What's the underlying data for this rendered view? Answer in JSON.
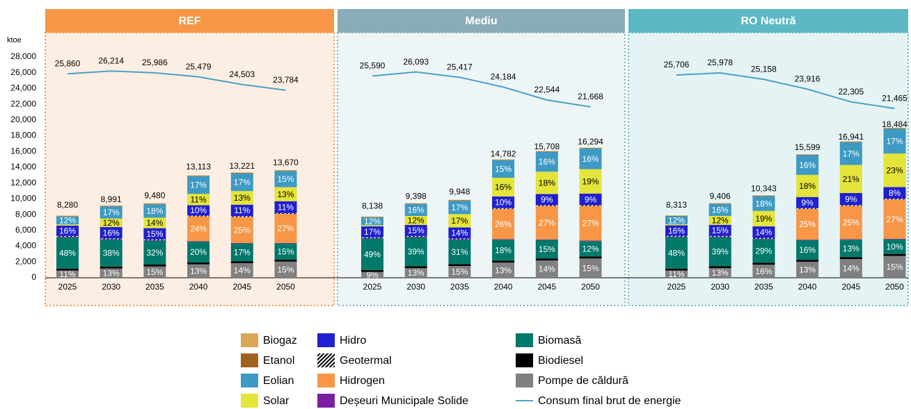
{
  "chart_data": {
    "type": "bar",
    "stacked": true,
    "ylabel": "ktoe",
    "ylim": [
      0,
      28000
    ],
    "yticks": [
      0,
      {
        "value": 2000,
        "label": "2,000"
      },
      {
        "value": 4000,
        "label": "4,000"
      },
      {
        "value": 6000,
        "label": "6,000"
      },
      {
        "value": 8000,
        "label": "8,000"
      },
      {
        "value": 10000,
        "label": "10,000"
      },
      {
        "value": 12000,
        "label": "12,000"
      },
      {
        "value": 14000,
        "label": "14,000"
      },
      {
        "value": 16000,
        "label": "16,000"
      },
      {
        "value": 18000,
        "label": "18,000"
      },
      {
        "value": 20000,
        "label": "20,000"
      },
      {
        "value": 22000,
        "label": "22,000"
      },
      {
        "value": 24000,
        "label": "24,000"
      },
      {
        "value": 26000,
        "label": "26,000"
      },
      {
        "value": 28000,
        "label": "28,000"
      }
    ],
    "series": [
      {
        "name": "Pompe de căldură",
        "color": "#808080"
      },
      {
        "name": "Biodiesel",
        "color": "#000000"
      },
      {
        "name": "Biomasă",
        "color": "#00786a"
      },
      {
        "name": "Deșeuri Municipale Solide",
        "color": "#7b1fa2"
      },
      {
        "name": "Hidrogen",
        "color": "#f79646"
      },
      {
        "name": "Geotermal",
        "color": "#000000",
        "pattern": "hatch"
      },
      {
        "name": "Hidro",
        "color": "#2020d0"
      },
      {
        "name": "Solar",
        "color": "#e4e43a"
      },
      {
        "name": "Eolian",
        "color": "#3d9ac4"
      },
      {
        "name": "Etanol",
        "color": "#a0631c"
      },
      {
        "name": "Biogaz",
        "color": "#d8a857"
      }
    ],
    "line": {
      "name": "Consum final brut de energie",
      "color": "#4aa0c8"
    },
    "panels": [
      {
        "title": "REF",
        "color": "#f79646",
        "background": "#fdeee3",
        "categories": [
          "2025",
          "2030",
          "2035",
          "2040",
          "2045",
          "2050"
        ],
        "values": [
          [
            911,
            1169,
            1422,
            1705,
            1851,
            2051
          ],
          [
            250,
            250,
            250,
            250,
            250,
            250
          ],
          [
            3974,
            3417,
            3034,
            2623,
            2248,
            2051
          ],
          [
            60,
            60,
            60,
            60,
            60,
            60
          ],
          [
            0,
            0,
            0,
            3147,
            3305,
            3691
          ],
          [
            100,
            100,
            100,
            100,
            100,
            100
          ],
          [
            1325,
            1439,
            1422,
            1311,
            1454,
            1504
          ],
          [
            150,
            1079,
            1327,
            1442,
            1719,
            1777
          ],
          [
            994,
            1528,
            1706,
            2229,
            2248,
            2051
          ],
          [
            60,
            60,
            60,
            60,
            60,
            60
          ],
          [
            60,
            60,
            60,
            60,
            60,
            60
          ]
        ],
        "share_labels": [
          [
            "11%",
            "13%",
            "15%",
            "13%",
            "14%",
            "15%"
          ],
          [
            null,
            null,
            null,
            null,
            null,
            null
          ],
          [
            "48%",
            "38%",
            "32%",
            "20%",
            "17%",
            "15%"
          ],
          [
            null,
            null,
            null,
            null,
            null,
            null
          ],
          [
            null,
            null,
            null,
            "24%",
            "25%",
            "27%"
          ],
          [
            null,
            null,
            null,
            null,
            null,
            null
          ],
          [
            "16%",
            "16%",
            "15%",
            "10%",
            "11%",
            "11%"
          ],
          [
            null,
            "12%",
            "14%",
            "11%",
            "13%",
            "13%"
          ],
          [
            "12%",
            "17%",
            "18%",
            "17%",
            "17%",
            "15%"
          ],
          [
            null,
            null,
            null,
            null,
            null,
            null
          ],
          [
            null,
            null,
            null,
            null,
            null,
            null
          ]
        ],
        "totals": [
          8280,
          8991,
          9480,
          13113,
          13221,
          13670
        ],
        "total_labels": [
          "8,280",
          "8,991",
          "9,480",
          "13,113",
          "13,221",
          "13,670"
        ],
        "line_values": [
          25860,
          26214,
          25986,
          25479,
          24503,
          23784
        ],
        "line_labels": [
          "25,860",
          "26,214",
          "25,986",
          "25,479",
          "24,503",
          "23,784"
        ]
      },
      {
        "title": "Mediu",
        "color": "#8aacb8",
        "background": "#eef5f7",
        "categories": [
          "2025",
          "2030",
          "2035",
          "2040",
          "2045",
          "2050"
        ],
        "values": [
          [
            732,
            1222,
            1492,
            1922,
            2199,
            2444
          ],
          [
            250,
            250,
            250,
            250,
            250,
            250
          ],
          [
            3988,
            3665,
            3084,
            2661,
            2356,
            1955
          ],
          [
            60,
            60,
            60,
            60,
            60,
            60
          ],
          [
            0,
            0,
            0,
            3843,
            4241,
            4399
          ],
          [
            100,
            100,
            100,
            100,
            100,
            100
          ],
          [
            1383,
            1410,
            1393,
            1478,
            1414,
            1466
          ],
          [
            150,
            1128,
            1691,
            2365,
            2827,
            3096
          ],
          [
            977,
            1504,
            1691,
            2217,
            2513,
            2607
          ],
          [
            60,
            60,
            60,
            60,
            60,
            60
          ],
          [
            60,
            60,
            60,
            60,
            60,
            60
          ]
        ],
        "share_labels": [
          [
            "9%",
            "13%",
            "15%",
            "13%",
            "14%",
            "15%"
          ],
          [
            null,
            null,
            null,
            null,
            null,
            null
          ],
          [
            "49%",
            "39%",
            "31%",
            "18%",
            "15%",
            "12%"
          ],
          [
            null,
            null,
            null,
            null,
            null,
            null
          ],
          [
            null,
            null,
            null,
            "26%",
            "27%",
            "27%"
          ],
          [
            null,
            null,
            null,
            null,
            null,
            null
          ],
          [
            "17%",
            "15%",
            "14%",
            "10%",
            "9%",
            "9%"
          ],
          [
            null,
            "12%",
            "17%",
            "16%",
            "18%",
            "19%"
          ],
          [
            "12%",
            "16%",
            "17%",
            "15%",
            "16%",
            "16%"
          ],
          [
            null,
            null,
            null,
            null,
            null,
            null
          ],
          [
            null,
            null,
            null,
            null,
            null,
            null
          ]
        ],
        "totals": [
          8138,
          9398,
          9948,
          14782,
          15708,
          16294
        ],
        "total_labels": [
          "8,138",
          "9,398",
          "9,948",
          "14,782",
          "15,708",
          "16,294"
        ],
        "line_values": [
          25590,
          26093,
          25417,
          24184,
          22544,
          21668
        ],
        "line_labels": [
          "25,590",
          "26,093",
          "25,417",
          "24,184",
          "22,544",
          "21,668"
        ]
      },
      {
        "title": "RO Neutră",
        "color": "#5bb8c4",
        "background": "#e5f3f5",
        "categories": [
          "2025",
          "2030",
          "2035",
          "2040",
          "2045",
          "2050"
        ],
        "values": [
          [
            914,
            1223,
            1655,
            2028,
            2372,
            2773
          ],
          [
            250,
            250,
            250,
            250,
            250,
            250
          ],
          [
            3990,
            3668,
            2999,
            2496,
            2202,
            1848
          ],
          [
            60,
            60,
            60,
            60,
            60,
            60
          ],
          [
            0,
            0,
            0,
            3900,
            4235,
            4991
          ],
          [
            100,
            100,
            100,
            100,
            100,
            100
          ],
          [
            1330,
            1411,
            1448,
            1404,
            1525,
            1479
          ],
          [
            150,
            1129,
            1965,
            2808,
            3558,
            4251
          ],
          [
            998,
            1505,
            1862,
            2496,
            2880,
            3142
          ],
          [
            60,
            60,
            60,
            60,
            60,
            60
          ],
          [
            60,
            60,
            60,
            60,
            60,
            60
          ]
        ],
        "share_labels": [
          [
            "11%",
            "13%",
            "16%",
            "13%",
            "14%",
            "15%"
          ],
          [
            null,
            null,
            null,
            null,
            null,
            null
          ],
          [
            "48%",
            "39%",
            "29%",
            "16%",
            "13%",
            "10%"
          ],
          [
            null,
            null,
            null,
            null,
            null,
            null
          ],
          [
            null,
            null,
            null,
            "25%",
            "25%",
            "27%"
          ],
          [
            null,
            null,
            null,
            null,
            null,
            null
          ],
          [
            "16%",
            "15%",
            "14%",
            "9%",
            "9%",
            "8%"
          ],
          [
            null,
            "12%",
            "19%",
            "18%",
            "21%",
            "23%"
          ],
          [
            "12%",
            "16%",
            "18%",
            "16%",
            "17%",
            "17%"
          ],
          [
            null,
            null,
            null,
            null,
            null,
            null
          ],
          [
            null,
            null,
            null,
            null,
            null,
            null
          ]
        ],
        "totals": [
          8313,
          9406,
          10343,
          15599,
          16941,
          18484
        ],
        "total_labels": [
          "8,313",
          "9,406",
          "10,343",
          "15,599",
          "16,941",
          "18,484"
        ],
        "line_values": [
          25706,
          25978,
          25158,
          23916,
          22305,
          21465
        ],
        "line_labels": [
          "25,706",
          "25,978",
          "25,158",
          "23,916",
          "22,305",
          "21,465"
        ]
      }
    ]
  }
}
